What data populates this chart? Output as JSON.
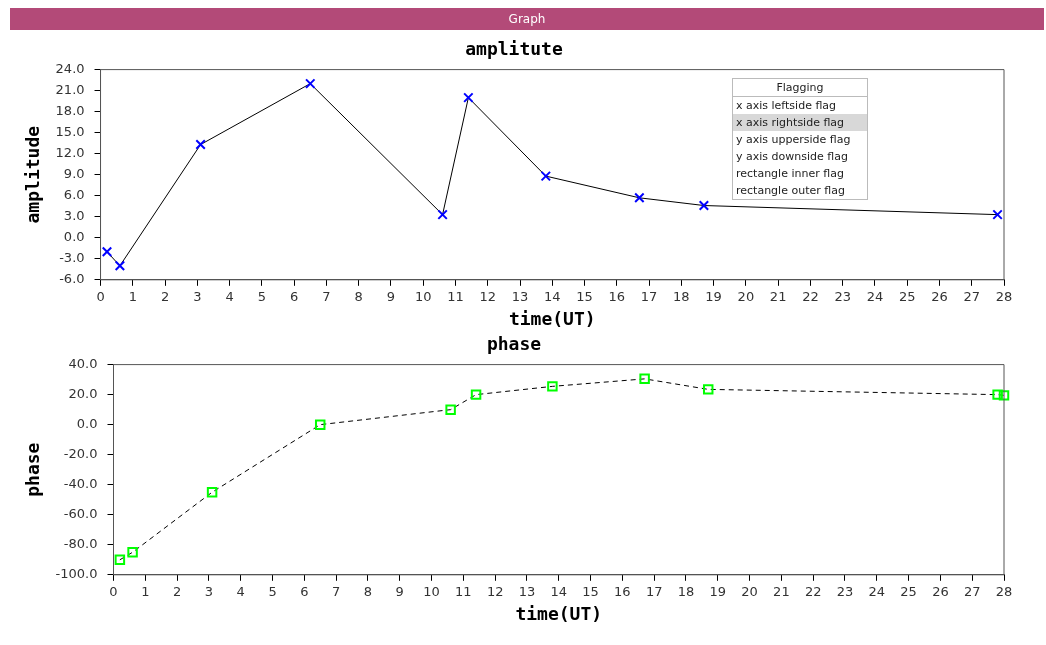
{
  "chart_data": [
    {
      "type": "line",
      "title": "amplitute",
      "xlabel": "time(UT)",
      "ylabel": "amplitude",
      "x": [
        0.2,
        0.6,
        3.1,
        6.5,
        10.6,
        11.4,
        13.8,
        16.7,
        18.7,
        27.8
      ],
      "series": [
        {
          "color": "#0000ff",
          "values": [
            -2,
            -4,
            13.3,
            22,
            3.3,
            20,
            8.8,
            5.7,
            4.6,
            3.3
          ]
        }
      ],
      "xlim": [
        0,
        28
      ],
      "xticks": [
        0,
        1,
        2,
        3,
        4,
        5,
        6,
        7,
        8,
        9,
        10,
        11,
        12,
        13,
        14,
        15,
        16,
        17,
        18,
        19,
        20,
        21,
        22,
        23,
        24,
        25,
        26,
        27,
        28
      ],
      "ylim": [
        -6,
        24
      ],
      "yticks": [
        {
          "value": -6,
          "label": "-6.0"
        },
        {
          "value": -3,
          "label": "-3.0"
        },
        {
          "value": 0,
          "label": "0.0"
        },
        {
          "value": 3,
          "label": "3.0"
        },
        {
          "value": 6,
          "label": "6.0"
        },
        {
          "value": 9,
          "label": "9.0"
        },
        {
          "value": 12,
          "label": "12.0"
        },
        {
          "value": 15,
          "label": "15.0"
        },
        {
          "value": 18,
          "label": "18.0"
        },
        {
          "value": 21,
          "label": "21.0"
        },
        {
          "value": 24,
          "label": "24.0"
        }
      ],
      "grid": false,
      "legend": false,
      "marker": "cross",
      "line_style": "solid",
      "annotations": [
        "Graph",
        "Flagging",
        "x axis leftside flag",
        "x axis rightside flag",
        "y axis upperside flag",
        "y axis downside flag",
        "rectangle inner flag",
        "rectangle outer flag"
      ]
    },
    {
      "type": "line",
      "title": "phase",
      "xlabel": "time(UT)",
      "ylabel": "phase",
      "x": [
        0.2,
        0.6,
        3.1,
        6.5,
        10.6,
        11.4,
        13.8,
        16.7,
        18.7,
        27.8,
        28.0
      ],
      "series": [
        {
          "color": "#00ff00",
          "values": [
            -90,
            -85,
            -45,
            0,
            10,
            20,
            25.5,
            30.5,
            23.5,
            20,
            19.5
          ]
        }
      ],
      "xlim": [
        0,
        28
      ],
      "xticks": [
        0,
        1,
        2,
        3,
        4,
        5,
        6,
        7,
        8,
        9,
        10,
        11,
        12,
        13,
        14,
        15,
        16,
        17,
        18,
        19,
        20,
        21,
        22,
        23,
        24,
        25,
        26,
        27,
        28
      ],
      "ylim": [
        -100,
        40
      ],
      "yticks": [
        {
          "value": -100,
          "label": "-100.0"
        },
        {
          "value": -80,
          "label": "-80.0"
        },
        {
          "value": -60,
          "label": "-60.0"
        },
        {
          "value": -40,
          "label": "-40.0"
        },
        {
          "value": -20,
          "label": "-20.0"
        },
        {
          "value": 0,
          "label": "0.0"
        },
        {
          "value": 20,
          "label": "20.0"
        },
        {
          "value": 40,
          "label": "40.0"
        }
      ],
      "grid": false,
      "legend": false,
      "marker": "square",
      "line_style": "dashed"
    }
  ]
}
